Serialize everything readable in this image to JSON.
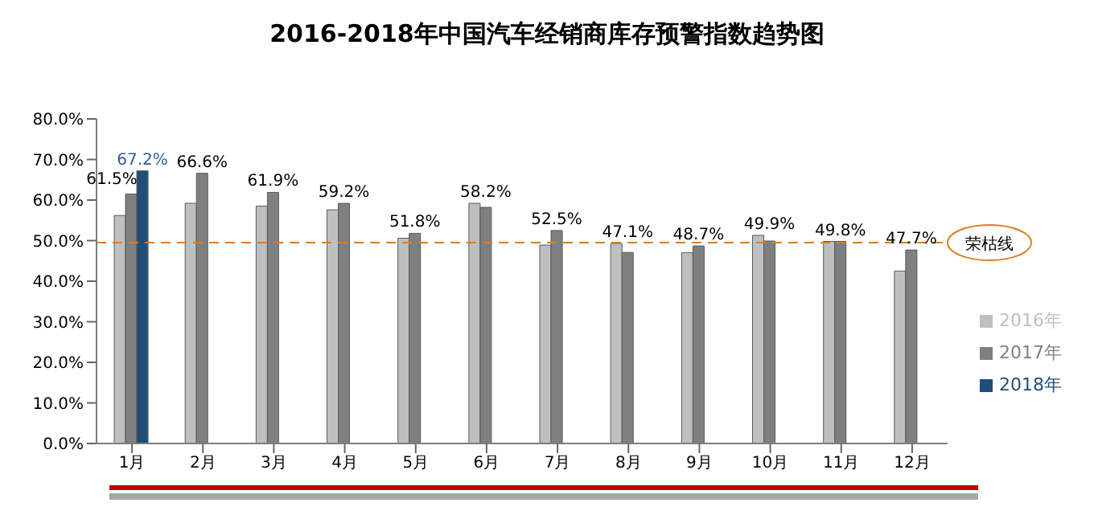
{
  "chart_data": {
    "type": "bar",
    "title": "2016-2018年中国汽车经销商库存预警指数趋势图",
    "categories": [
      "1月",
      "2月",
      "3月",
      "4月",
      "5月",
      "6月",
      "7月",
      "8月",
      "9月",
      "10月",
      "11月",
      "12月"
    ],
    "series": [
      {
        "name": "2016年",
        "color": "#bfbfbf",
        "values": [
          56.2,
          59.2,
          58.5,
          57.6,
          50.6,
          59.2,
          48.9,
          49.3,
          47.0,
          51.3,
          49.8,
          42.5
        ]
      },
      {
        "name": "2017年",
        "color": "#7f7f7f",
        "values": [
          61.5,
          66.6,
          61.9,
          59.2,
          51.8,
          58.2,
          52.5,
          47.1,
          48.7,
          49.9,
          49.8,
          47.7
        ],
        "value_labels": [
          "61.5%",
          "66.6%",
          "61.9%",
          "59.2%",
          "51.8%",
          "58.2%",
          "52.5%",
          "47.1%",
          "48.7%",
          "49.9%",
          "49.8%",
          "47.7%"
        ]
      },
      {
        "name": "2018年",
        "color": "#1f4e79",
        "values": [
          67.2,
          null,
          null,
          null,
          null,
          null,
          null,
          null,
          null,
          null,
          null,
          null
        ],
        "value_labels": [
          "67.2%",
          null,
          null,
          null,
          null,
          null,
          null,
          null,
          null,
          null,
          null,
          null
        ]
      }
    ],
    "ylim": [
      0,
      80
    ],
    "yticks": [
      {
        "value": 0,
        "label": "0.0%"
      },
      {
        "value": 10,
        "label": "10.0%"
      },
      {
        "value": 20,
        "label": "20.0%"
      },
      {
        "value": 30,
        "label": "30.0%"
      },
      {
        "value": 40,
        "label": "40.0%"
      },
      {
        "value": 50,
        "label": "50.0%"
      },
      {
        "value": 60,
        "label": "60.0%"
      },
      {
        "value": 70,
        "label": "70.0%"
      },
      {
        "value": 80,
        "label": "80.0%"
      }
    ],
    "ref_lines": [
      {
        "axis": "y",
        "value": 49.5,
        "label": "荣枯线",
        "color": "#e07b20",
        "line_style": "dashed"
      }
    ],
    "grid": false,
    "legend": "right"
  }
}
